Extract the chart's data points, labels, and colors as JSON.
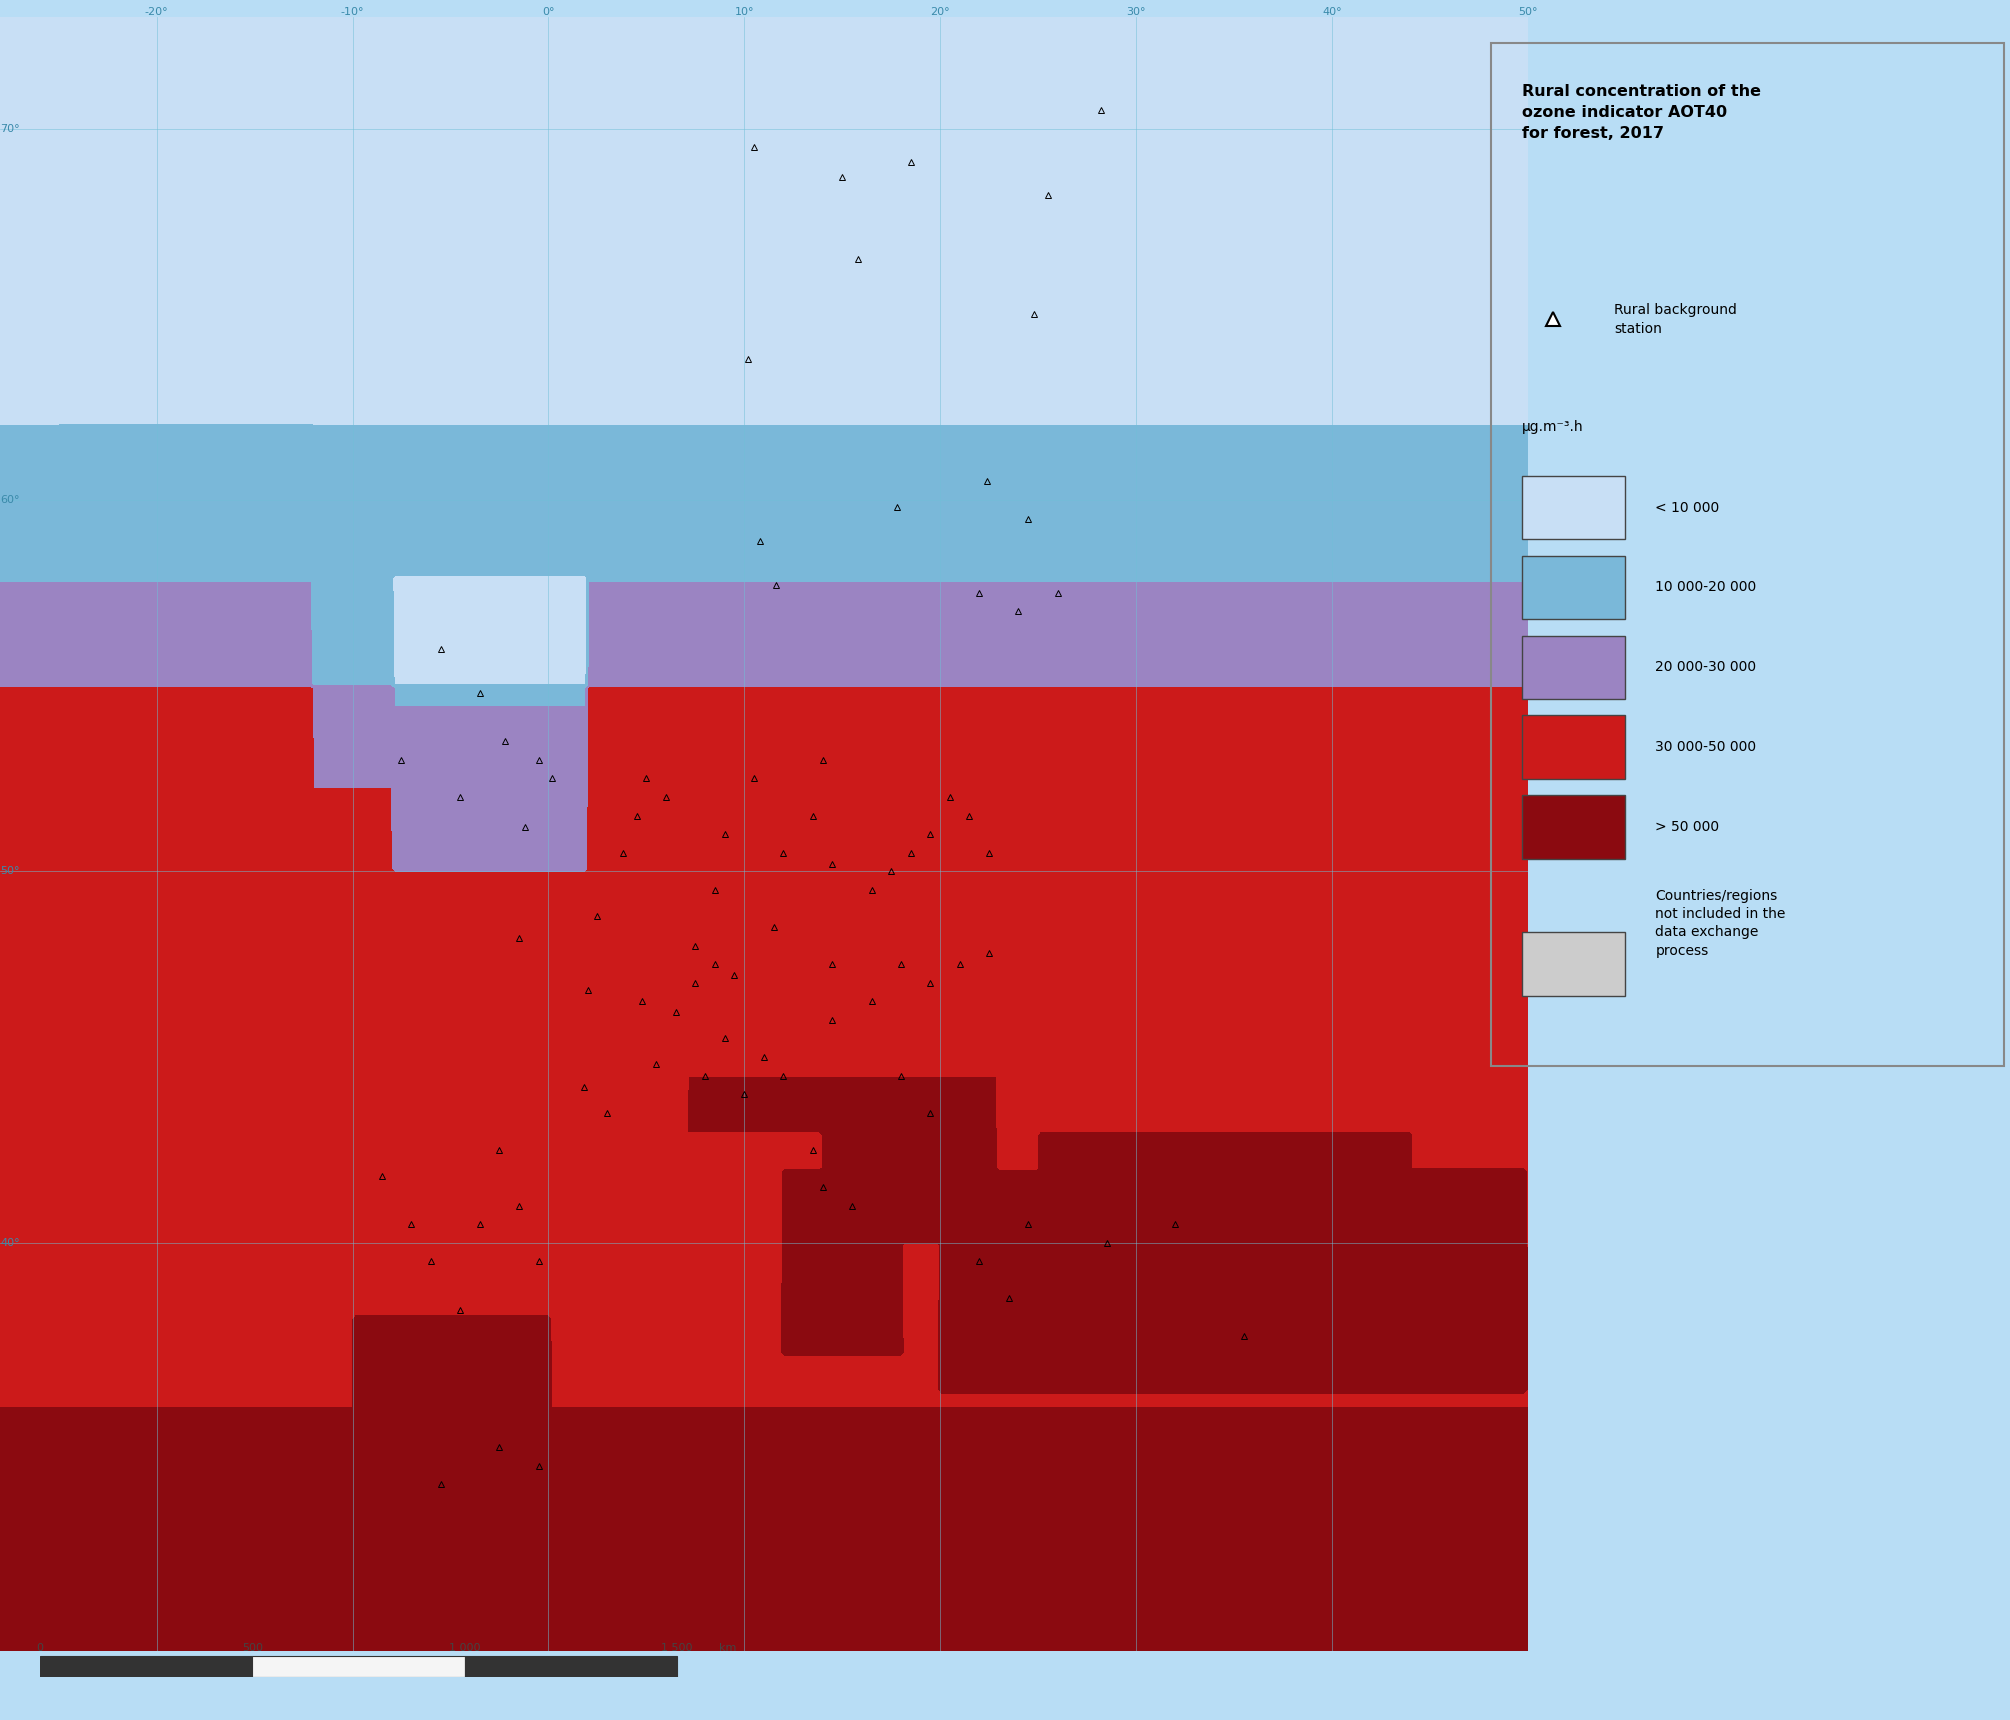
{
  "title": "Rural concentration of the\nozone indicator AOT40\nfor forest, 2017",
  "legend_title": "μg.m⁻³.h",
  "legend_items": [
    {
      "label": "< 10 000",
      "color": "#c8dff5"
    },
    {
      "label": "10 000-20 000",
      "color": "#7ab8d9"
    },
    {
      "label": "20 000-30 000",
      "color": "#9b84c2"
    },
    {
      "label": "30 000-50 000",
      "color": "#cc1a1a"
    },
    {
      "label": "> 50 000",
      "color": "#8b0a10"
    }
  ],
  "not_included_color": "#cccccc",
  "not_included_label": "Countries/regions\nnot included in the\ndata exchange\nprocess",
  "station_label": "Rural background\nstation",
  "ocean_color": "#b8ddf5",
  "graticule_color": "#70c0d8",
  "land_no_data_color": "#cccccc",
  "figsize": [
    20.1,
    17.2
  ],
  "dpi": 100,
  "map_extent": [
    -28,
    50,
    29,
    73
  ],
  "central_lon": 13,
  "central_lat": 52,
  "ozone_bounds": [
    0,
    10000,
    20000,
    30000,
    50000,
    200000
  ]
}
